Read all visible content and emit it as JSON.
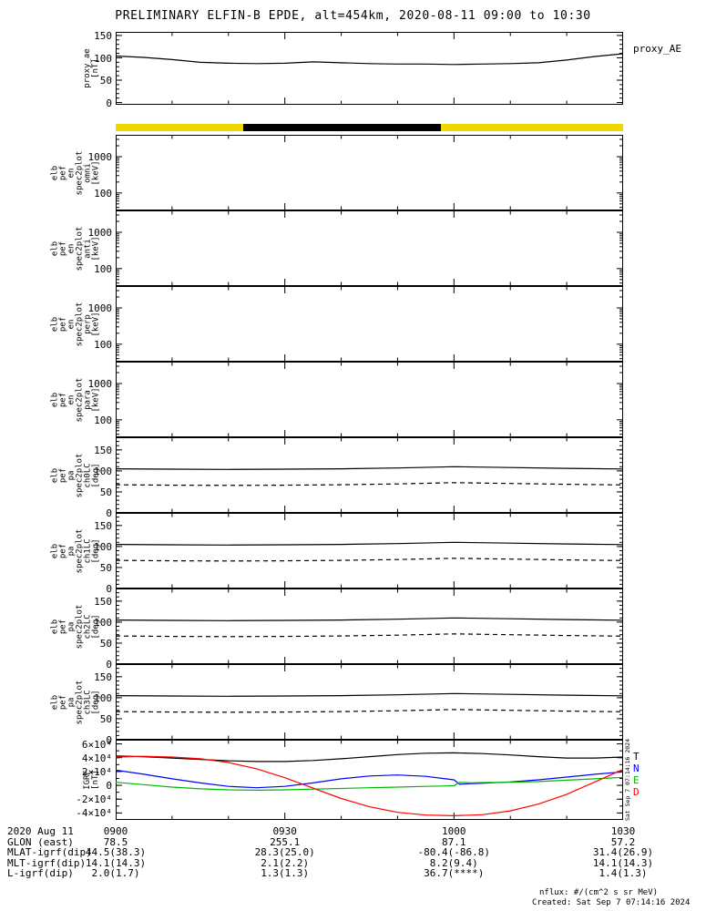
{
  "title": "PRELIMINARY ELFIN-B EPDE, alt=454km, 2020-08-11 09:00 to 10:30",
  "footer": {
    "nflux_units": "nflux: #/(cm^2 s sr MeV)",
    "created": "Created: Sat Sep  7 07:14:16 2024"
  },
  "side_note": "Sat Sep  7 07:14:16 2024",
  "time_axis": {
    "span_min": 90,
    "major_ticks_min": [
      0,
      30,
      60,
      90
    ],
    "minor_step_min": 10,
    "labels": [
      "0900",
      "0930",
      "1000",
      "1030"
    ]
  },
  "zone_bar": {
    "segments": [
      {
        "color": "#EFD800",
        "from": 0.0,
        "to": 0.251
      },
      {
        "color": "#000000",
        "from": 0.251,
        "to": 0.641
      },
      {
        "color": "#EFD800",
        "from": 0.641,
        "to": 1.0
      }
    ]
  },
  "bottom_rows": [
    {
      "label": "2020 Aug 11",
      "values": [
        "0900",
        "0930",
        "1000",
        "1030"
      ]
    },
    {
      "label": "GLON (east)",
      "values": [
        "78.5",
        "255.1",
        "87.1",
        "57.2"
      ]
    },
    {
      "label": "MLAT-igrf(dip)",
      "values": [
        "44.5(38.3)",
        "28.3(25.0)",
        "-80.4(-86.8)",
        "31.4(26.9)"
      ]
    },
    {
      "label": "MLT-igrf(dip)",
      "values": [
        "14.1(14.3)",
        "2.1(2.2)",
        "8.2(9.4)",
        "14.1(14.3)"
      ]
    },
    {
      "label": "L-igrf(dip)",
      "values": [
        "2.0(1.7)",
        "1.3(1.3)",
        "36.7(****)",
        "1.4(1.3)"
      ]
    }
  ],
  "chart_data": [
    {
      "id": "proxy_ae",
      "type": "line",
      "ylabel_lines": [
        "proxy_ae",
        "[nT]"
      ],
      "yscale": "linear",
      "ylim": [
        -5,
        158
      ],
      "yminor": 10,
      "yticks": [
        {
          "v": 0,
          "label": "0"
        },
        {
          "v": 50,
          "label": "50"
        },
        {
          "v": 100,
          "label": "100"
        },
        {
          "v": 150,
          "label": "150"
        }
      ],
      "right_labels": [
        {
          "text": "proxy_AE",
          "color": "#000000"
        }
      ],
      "series": [
        {
          "name": "proxy_AE",
          "color": "#000000",
          "style": "solid",
          "x": [
            0,
            5,
            10,
            15,
            20,
            25,
            30,
            35,
            40,
            45,
            50,
            55,
            60,
            65,
            70,
            75,
            80,
            85,
            90
          ],
          "y": [
            104,
            101,
            96,
            90,
            88,
            87,
            88,
            91,
            89,
            87,
            86,
            86,
            85,
            86,
            87,
            89,
            95,
            103,
            109
          ]
        }
      ]
    },
    {
      "id": "elb_pef_en_spec2plot_omni",
      "type": "spectrogram",
      "ylabel_lines": [
        "elb",
        "pef",
        "en",
        "spec2plot",
        "omni",
        "[keV]"
      ],
      "yscale": "log",
      "ylim": [
        33,
        4000
      ],
      "yticks": [
        {
          "v": 100,
          "label": "100"
        },
        {
          "v": 1000,
          "label": "1000"
        }
      ],
      "series": []
    },
    {
      "id": "elb_pef_en_spec2plot_anti",
      "type": "spectrogram",
      "ylabel_lines": [
        "elb",
        "pef",
        "en",
        "spec2plot",
        "anti",
        "[keV]"
      ],
      "yscale": "log",
      "ylim": [
        33,
        4000
      ],
      "yticks": [
        {
          "v": 100,
          "label": "100"
        },
        {
          "v": 1000,
          "label": "1000"
        }
      ],
      "series": []
    },
    {
      "id": "elb_pef_en_spec2plot_perp",
      "type": "spectrogram",
      "ylabel_lines": [
        "elb",
        "pef",
        "en",
        "spec2plot",
        "perp",
        "[keV]"
      ],
      "yscale": "log",
      "ylim": [
        33,
        4000
      ],
      "yticks": [
        {
          "v": 100,
          "label": "100"
        },
        {
          "v": 1000,
          "label": "1000"
        }
      ],
      "series": []
    },
    {
      "id": "elb_pef_en_spec2plot_para",
      "type": "spectrogram",
      "ylabel_lines": [
        "elb",
        "pef",
        "en",
        "spec2plot",
        "para",
        "[keV]"
      ],
      "yscale": "log",
      "ylim": [
        33,
        4000
      ],
      "yticks": [
        {
          "v": 100,
          "label": "100"
        },
        {
          "v": 1000,
          "label": "1000"
        }
      ],
      "series": []
    },
    {
      "id": "elb_pef_pa_spec2plot_ch0LC",
      "type": "line",
      "ylabel_lines": [
        "elb",
        "pef",
        "pa",
        "spec2plot",
        "ch0LC",
        "[deg]"
      ],
      "yscale": "linear",
      "ylim": [
        0,
        180
      ],
      "yminor": 10,
      "yticks": [
        {
          "v": 0,
          "label": "0"
        },
        {
          "v": 50,
          "label": "50"
        },
        {
          "v": 100,
          "label": "100"
        },
        {
          "v": 150,
          "label": "150"
        }
      ],
      "series": [
        {
          "name": "losscone",
          "color": "#000000",
          "style": "solid",
          "x": [
            0,
            10,
            20,
            30,
            40,
            50,
            60,
            70,
            80,
            90
          ],
          "y": [
            105,
            104,
            103.5,
            104,
            105,
            107,
            110,
            108,
            106,
            104.5
          ]
        },
        {
          "name": "antilosscone",
          "color": "#000000",
          "style": "dashed",
          "x": [
            0,
            10,
            20,
            30,
            40,
            50,
            60,
            70,
            80,
            90
          ],
          "y": [
            67,
            66,
            65.5,
            66,
            67,
            69,
            72,
            70,
            68,
            66.5
          ]
        }
      ]
    },
    {
      "id": "elb_pef_pa_spec2plot_ch1LC",
      "type": "line",
      "ylabel_lines": [
        "elb",
        "pef",
        "pa",
        "spec2plot",
        "ch1LC",
        "[deg]"
      ],
      "yscale": "linear",
      "ylim": [
        0,
        180
      ],
      "yminor": 10,
      "yticks": [
        {
          "v": 0,
          "label": "0"
        },
        {
          "v": 50,
          "label": "50"
        },
        {
          "v": 100,
          "label": "100"
        },
        {
          "v": 150,
          "label": "150"
        }
      ],
      "series": [
        {
          "name": "losscone",
          "color": "#000000",
          "style": "solid",
          "x": [
            0,
            10,
            20,
            30,
            40,
            50,
            60,
            70,
            80,
            90
          ],
          "y": [
            105,
            104,
            103.5,
            104,
            105,
            107,
            110,
            108,
            106,
            104.5
          ]
        },
        {
          "name": "antilosscone",
          "color": "#000000",
          "style": "dashed",
          "x": [
            0,
            10,
            20,
            30,
            40,
            50,
            60,
            70,
            80,
            90
          ],
          "y": [
            67,
            66,
            65.5,
            66,
            67,
            69,
            72,
            70,
            68,
            66.5
          ]
        }
      ]
    },
    {
      "id": "elb_pef_pa_spec2plot_ch2LC",
      "type": "line",
      "ylabel_lines": [
        "elb",
        "pef",
        "pa",
        "spec2plot",
        "ch2LC",
        "[deg]"
      ],
      "yscale": "linear",
      "ylim": [
        0,
        180
      ],
      "yminor": 10,
      "yticks": [
        {
          "v": 0,
          "label": "0"
        },
        {
          "v": 50,
          "label": "50"
        },
        {
          "v": 100,
          "label": "100"
        },
        {
          "v": 150,
          "label": "150"
        }
      ],
      "series": [
        {
          "name": "losscone",
          "color": "#000000",
          "style": "solid",
          "x": [
            0,
            10,
            20,
            30,
            40,
            50,
            60,
            70,
            80,
            90
          ],
          "y": [
            105,
            104,
            103.5,
            104,
            105,
            107,
            110,
            108,
            106,
            104.5
          ]
        },
        {
          "name": "antilosscone",
          "color": "#000000",
          "style": "dashed",
          "x": [
            0,
            10,
            20,
            30,
            40,
            50,
            60,
            70,
            80,
            90
          ],
          "y": [
            67,
            66,
            65.5,
            66,
            67,
            69,
            72,
            70,
            68,
            66.5
          ]
        }
      ]
    },
    {
      "id": "elb_pef_pa_spec2plot_ch3LC",
      "type": "line",
      "ylabel_lines": [
        "elb",
        "pef",
        "pa",
        "spec2plot",
        "ch3LC",
        "[deg]"
      ],
      "yscale": "linear",
      "ylim": [
        0,
        180
      ],
      "yminor": 10,
      "yticks": [
        {
          "v": 0,
          "label": "0"
        },
        {
          "v": 50,
          "label": "50"
        },
        {
          "v": 100,
          "label": "100"
        },
        {
          "v": 150,
          "label": "150"
        }
      ],
      "series": [
        {
          "name": "losscone",
          "color": "#000000",
          "style": "solid",
          "x": [
            0,
            10,
            20,
            30,
            40,
            50,
            60,
            70,
            80,
            90
          ],
          "y": [
            105,
            104,
            103.5,
            104,
            105,
            107,
            110,
            108,
            106,
            104.5
          ]
        },
        {
          "name": "antilosscone",
          "color": "#000000",
          "style": "dashed",
          "x": [
            0,
            10,
            20,
            30,
            40,
            50,
            60,
            70,
            80,
            90
          ],
          "y": [
            67,
            66,
            65.5,
            66,
            67,
            69,
            72,
            70,
            68,
            66.5
          ]
        }
      ]
    },
    {
      "id": "IGRF",
      "type": "line",
      "ylabel_lines": [
        "IGRF",
        "[nT]"
      ],
      "yscale": "linear",
      "ylim": [
        -50000,
        66000
      ],
      "yminor": 10000,
      "yticks": [
        {
          "v": 60000,
          "label": "6×10⁴"
        },
        {
          "v": 40000,
          "label": "4×10⁴"
        },
        {
          "v": 20000,
          "label": "2×10⁴"
        },
        {
          "v": 0,
          "label": "0"
        },
        {
          "v": -20000,
          "label": "-2×10⁴"
        },
        {
          "v": -40000,
          "label": "-4×10⁴"
        }
      ],
      "right_labels": [
        {
          "text": "T",
          "color": "#000000"
        },
        {
          "text": "N",
          "color": "#0000FF"
        },
        {
          "text": "E",
          "color": "#00B800"
        },
        {
          "text": "D",
          "color": "#FF0000"
        }
      ],
      "series": [
        {
          "name": "T",
          "color": "#000000",
          "style": "solid",
          "x": [
            0,
            5,
            10,
            15,
            20,
            25,
            30,
            35,
            40,
            45,
            50,
            55,
            60,
            65,
            70,
            75,
            80,
            85,
            90
          ],
          "y": [
            42500,
            41500,
            39500,
            37500,
            35500,
            34500,
            34500,
            36000,
            38500,
            41500,
            44500,
            46500,
            47000,
            46000,
            44000,
            41500,
            39500,
            39500,
            41000
          ]
        },
        {
          "name": "N",
          "color": "#0000FF",
          "style": "solid",
          "x": [
            0,
            5,
            10,
            15,
            20,
            25,
            30,
            35,
            40,
            45,
            50,
            55,
            58,
            60,
            61,
            63,
            65,
            70,
            75,
            80,
            85,
            90
          ],
          "y": [
            22000,
            16000,
            9500,
            3500,
            -1500,
            -3500,
            -1500,
            3500,
            9500,
            13500,
            15000,
            13000,
            10000,
            8000,
            1500,
            2500,
            3000,
            5000,
            8000,
            12000,
            16000,
            19500
          ]
        },
        {
          "name": "E",
          "color": "#00B800",
          "style": "solid",
          "x": [
            0,
            5,
            10,
            15,
            20,
            25,
            30,
            35,
            40,
            45,
            50,
            55,
            58,
            60,
            61,
            63,
            65,
            70,
            75,
            80,
            85,
            90
          ],
          "y": [
            4500,
            1000,
            -2500,
            -5000,
            -6500,
            -7000,
            -6500,
            -5500,
            -4500,
            -3500,
            -2500,
            -1500,
            -1000,
            -500,
            4500,
            3500,
            4000,
            4500,
            5500,
            7500,
            9500,
            11500
          ]
        },
        {
          "name": "D",
          "color": "#FF0000",
          "style": "solid",
          "x": [
            0,
            5,
            10,
            15,
            20,
            25,
            30,
            35,
            40,
            45,
            50,
            55,
            60,
            65,
            70,
            75,
            80,
            85,
            90
          ],
          "y": [
            41000,
            42000,
            41000,
            38500,
            33000,
            24000,
            11000,
            -4000,
            -19000,
            -31000,
            -39000,
            -43000,
            -44000,
            -42500,
            -37000,
            -27000,
            -13000,
            5000,
            23000
          ]
        }
      ]
    }
  ]
}
